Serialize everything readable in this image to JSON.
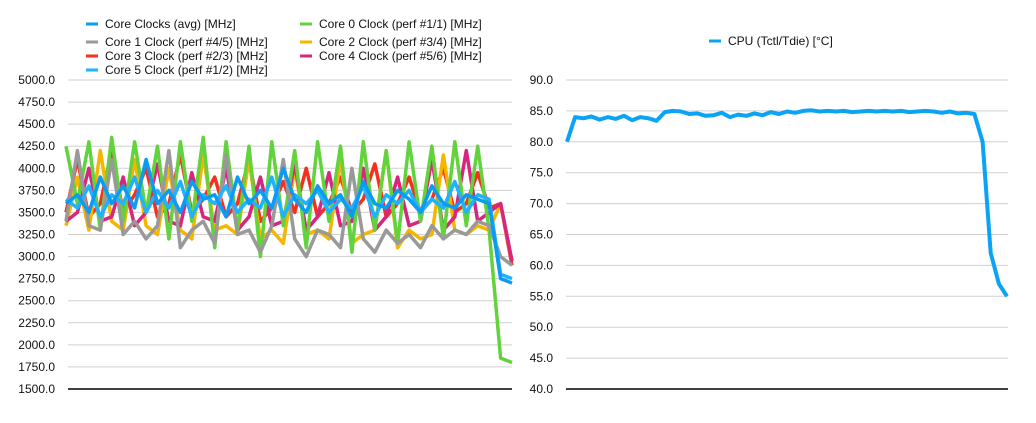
{
  "chart_data": [
    {
      "type": "line",
      "title": "",
      "xlabel": "",
      "ylabel": "",
      "ylim": [
        1500,
        5000
      ],
      "yticks": [
        "5000.0",
        "4750.0",
        "4500.0",
        "4250.0",
        "4000.0",
        "3750.0",
        "3500.0",
        "3250.0",
        "3000.0",
        "2750.0",
        "2500.0",
        "2250.0",
        "2000.0",
        "1750.0",
        "1500.0"
      ],
      "grid": true,
      "legend_placement": "top",
      "series": [
        {
          "name": "Core Clocks (avg) [MHz]",
          "color": "#0a9cf5",
          "values": [
            3600,
            3700,
            3500,
            3900,
            3600,
            3800,
            3550,
            4100,
            3600,
            3750,
            3500,
            3850,
            3650,
            3700,
            3450,
            3900,
            3600,
            3750,
            3550,
            4000,
            3650,
            3500,
            3800,
            3600,
            3700,
            3450,
            3850,
            3600,
            3550,
            3750,
            3650,
            3500,
            3800,
            3600,
            3550,
            3700,
            3650,
            3600,
            2750,
            2700
          ]
        },
        {
          "name": "Core 0 Clock (perf #1/1) [MHz]",
          "color": "#62d33d",
          "values": [
            4250,
            3600,
            4300,
            3300,
            4350,
            3400,
            4300,
            3500,
            4250,
            3200,
            4300,
            3400,
            4350,
            3100,
            4300,
            3300,
            4250,
            3000,
            4300,
            3350,
            4200,
            3100,
            4300,
            3400,
            4250,
            3050,
            4300,
            3300,
            4200,
            3150,
            4300,
            3400,
            4250,
            3200,
            4300,
            3350,
            4250,
            3300,
            1850,
            1800
          ]
        },
        {
          "name": "Core 1 Clock (perf #4/5) [MHz]",
          "color": "#999999",
          "values": [
            3400,
            4200,
            3350,
            3300,
            4100,
            3250,
            3400,
            3200,
            3350,
            4200,
            3100,
            3300,
            3400,
            3150,
            4150,
            3250,
            3300,
            3050,
            3350,
            4100,
            3200,
            3000,
            3300,
            3250,
            3100,
            4000,
            3200,
            3050,
            3300,
            3150,
            3250,
            3100,
            3350,
            3200,
            3300,
            3250,
            3400,
            3350,
            3000,
            2900
          ]
        },
        {
          "name": "Core 2 Clock (perf #3/4) [MHz]",
          "color": "#f7b500",
          "values": [
            3350,
            3900,
            3300,
            4200,
            3400,
            3300,
            4100,
            3350,
            3250,
            4000,
            3300,
            3200,
            4150,
            3300,
            3350,
            3250,
            4100,
            3200,
            3300,
            3150,
            4000,
            3250,
            3300,
            3200,
            4100,
            3150,
            3250,
            3300,
            4200,
            3100,
            3300,
            3200,
            3250,
            4150,
            3300,
            3250,
            3350,
            3300,
            3600,
            2950
          ]
        },
        {
          "name": "Core 3 Clock (perf #2/3) [MHz]",
          "color": "#f5301e",
          "values": [
            3500,
            4100,
            3450,
            3600,
            4200,
            3500,
            3700,
            4000,
            3450,
            3600,
            4150,
            3500,
            3650,
            3900,
            3450,
            3600,
            4100,
            3400,
            3550,
            3850,
            3500,
            4000,
            3450,
            3600,
            3900,
            3500,
            3650,
            4050,
            3450,
            3600,
            3900,
            3500,
            3650,
            4000,
            3500,
            3600,
            3950,
            3550,
            3600,
            2900
          ]
        },
        {
          "name": "Core 4 Clock (perf #5/6) [MHz]",
          "color": "#d7267e",
          "values": [
            3400,
            3500,
            4000,
            3400,
            3450,
            3900,
            3350,
            3500,
            4050,
            3400,
            3350,
            3950,
            3450,
            3400,
            4000,
            3300,
            3450,
            3900,
            3350,
            3400,
            4050,
            3300,
            3450,
            3950,
            3350,
            3400,
            4000,
            3300,
            3450,
            3900,
            3350,
            3400,
            4100,
            3300,
            3450,
            4200,
            3400,
            3500,
            3600,
            2950
          ]
        },
        {
          "name": "Core 5 Clock (perf #1/2) [MHz]",
          "color": "#1fb3ff",
          "values": [
            3650,
            3550,
            3800,
            3450,
            3700,
            3600,
            3900,
            3500,
            3750,
            3550,
            3850,
            3450,
            3700,
            3600,
            3800,
            3500,
            3650,
            3550,
            3900,
            3450,
            3700,
            3600,
            3750,
            3500,
            3650,
            3550,
            3800,
            3450,
            3700,
            3600,
            3750,
            3500,
            3650,
            3550,
            3850,
            3500,
            3700,
            3650,
            2800,
            2750
          ]
        }
      ]
    },
    {
      "type": "line",
      "title": "",
      "xlabel": "",
      "ylabel": "",
      "ylim": [
        40,
        90
      ],
      "yticks": [
        "90.0",
        "85.0",
        "80.0",
        "75.0",
        "70.0",
        "65.0",
        "60.0",
        "55.0",
        "50.0",
        "45.0",
        "40.0"
      ],
      "grid": true,
      "legend_placement": "top",
      "series": [
        {
          "name": "CPU (Tctl/Tdie) [°C]",
          "color": "#0aa3f5",
          "values": [
            80.0,
            84.0,
            83.8,
            84.1,
            83.6,
            84.0,
            83.7,
            84.2,
            83.5,
            84.0,
            83.8,
            83.4,
            84.8,
            85.0,
            84.9,
            84.5,
            84.6,
            84.2,
            84.3,
            84.7,
            84.0,
            84.4,
            84.2,
            84.6,
            84.3,
            84.8,
            84.5,
            84.9,
            84.7,
            85.0,
            85.1,
            84.9,
            85.0,
            84.9,
            85.0,
            84.8,
            84.9,
            85.0,
            84.9,
            85.0,
            84.9,
            85.0,
            84.8,
            84.9,
            85.0,
            84.9,
            84.7,
            84.9,
            84.6,
            84.7,
            84.5,
            80.0,
            62.0,
            57.0,
            55.0
          ]
        }
      ]
    }
  ]
}
